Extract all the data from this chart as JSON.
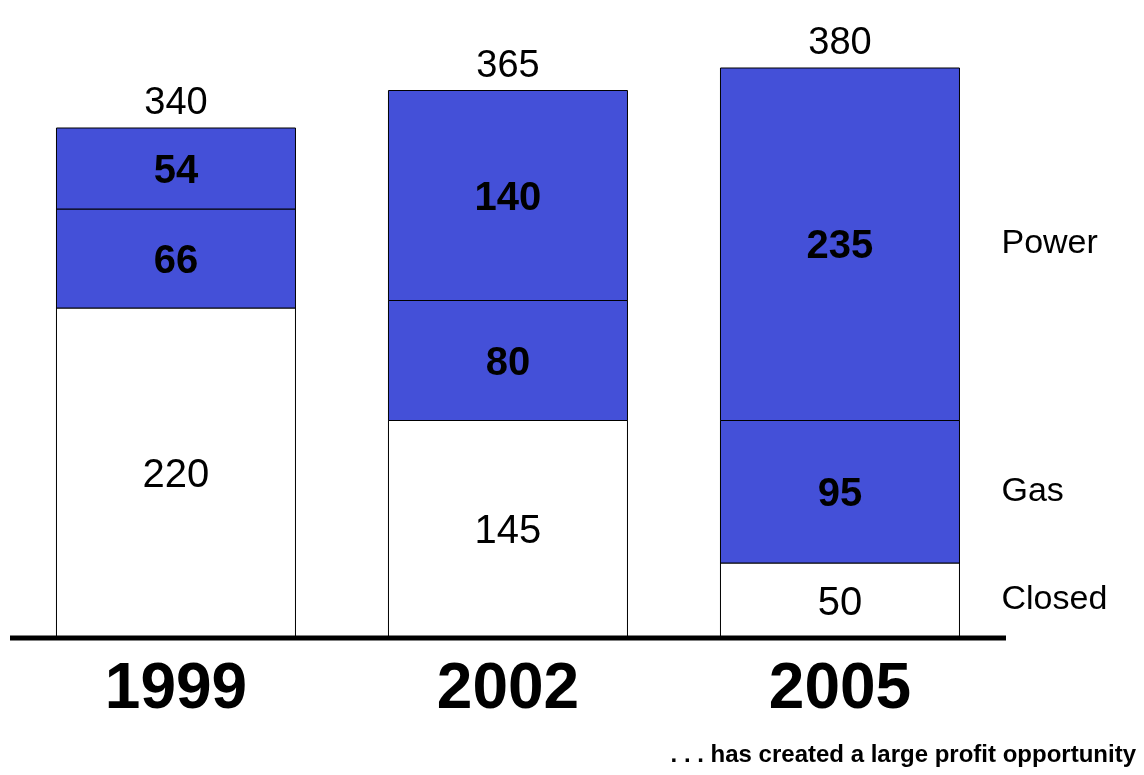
{
  "chart_data": {
    "type": "bar",
    "stacked": true,
    "categories": [
      "1999",
      "2002",
      "2005"
    ],
    "series": [
      {
        "name": "Closed",
        "color": "#ffffff",
        "values": [
          220,
          145,
          50
        ]
      },
      {
        "name": "Gas",
        "color": "#4450d8",
        "values": [
          66,
          80,
          95
        ]
      },
      {
        "name": "Power",
        "color": "#4450d8",
        "values": [
          54,
          140,
          235
        ]
      }
    ],
    "data_labels": true,
    "totals": [
      "340",
      "365",
      "380"
    ],
    "annotations": [
      ". . . has  created a large profit opportunity"
    ]
  }
}
